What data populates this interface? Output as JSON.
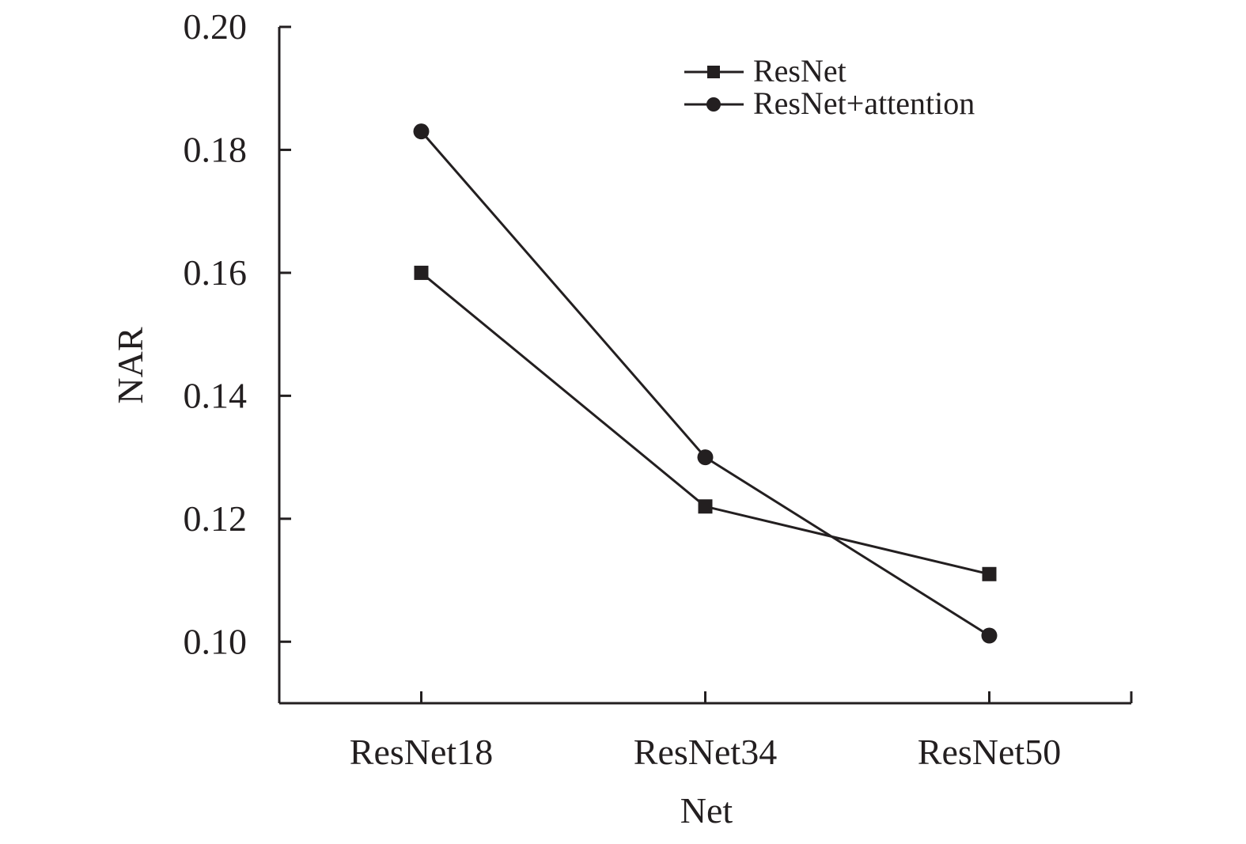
{
  "chart_data": {
    "type": "line",
    "title": "",
    "xlabel": "Net",
    "ylabel": "NAR",
    "categories": [
      "ResNet18",
      "ResNet34",
      "ResNet50"
    ],
    "ylim": [
      0.09,
      0.2
    ],
    "yticks": [
      "0.10",
      "0.12",
      "0.14",
      "0.16",
      "0.18",
      "0.20"
    ],
    "grid": false,
    "legend_position": "top-right",
    "series": [
      {
        "name": "ResNet",
        "marker": "square",
        "values": [
          0.16,
          0.122,
          0.111
        ]
      },
      {
        "name": "ResNet+attention",
        "marker": "circle",
        "values": [
          0.183,
          0.13,
          0.101
        ]
      }
    ],
    "colors": {
      "line": "#231f20"
    }
  }
}
